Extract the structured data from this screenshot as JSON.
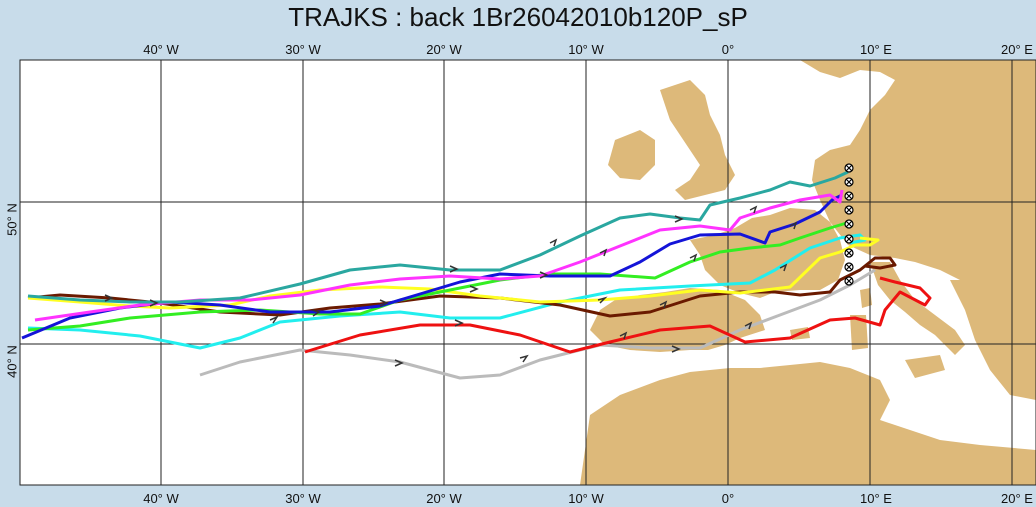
{
  "title": "TRAJKS : back 1Br26042010b120P_sP",
  "lon_labels": [
    "40° W",
    "30° W",
    "20° W",
    "10° W",
    "0°",
    "10° E",
    "20° E"
  ],
  "lat_labels": [
    "50° N",
    "40° N"
  ],
  "colors": {
    "sea": "#ffffff",
    "land": "#ddb97a",
    "frame": "#c8dcea",
    "teal": "#2aa7a0",
    "magenta": "#ff33ff",
    "blue": "#1414d8",
    "green": "#33ee22",
    "yellow": "#ffff22",
    "cyan": "#22eeee",
    "brown": "#6a1a00",
    "red": "#ee1111",
    "gray": "#bbbbbb"
  },
  "markers": {
    "type": "start-point-marker",
    "count": 9
  },
  "trajectories": [
    {
      "color": "teal"
    },
    {
      "color": "magenta"
    },
    {
      "color": "blue"
    },
    {
      "color": "green"
    },
    {
      "color": "yellow"
    },
    {
      "color": "cyan"
    },
    {
      "color": "brown"
    },
    {
      "color": "red"
    },
    {
      "color": "gray"
    }
  ]
}
